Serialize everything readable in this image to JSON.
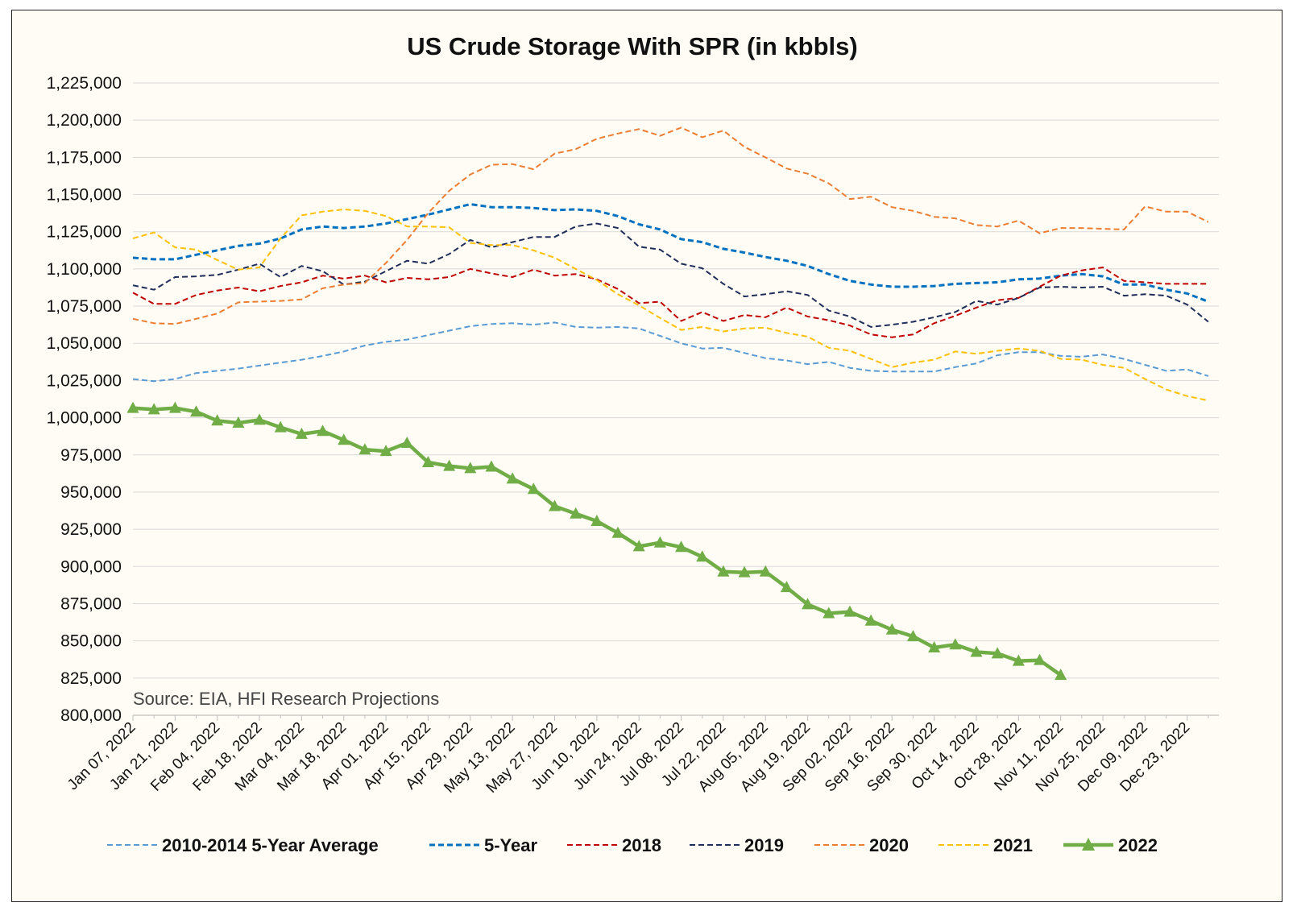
{
  "chart_data": {
    "type": "line",
    "title": "US Crude Storage With SPR (in kbbls)",
    "xlabel": "",
    "ylabel": "",
    "ylim": [
      800000,
      1225000
    ],
    "yticks": [
      800000,
      825000,
      850000,
      875000,
      900000,
      925000,
      950000,
      975000,
      1000000,
      1025000,
      1050000,
      1075000,
      1100000,
      1125000,
      1150000,
      1175000,
      1200000,
      1225000
    ],
    "ytick_labels": [
      "800,000",
      "825,000",
      "850,000",
      "875,000",
      "900,000",
      "925,000",
      "950,000",
      "975,000",
      "1,000,000",
      "1,025,000",
      "1,050,000",
      "1,075,000",
      "1,100,000",
      "1,125,000",
      "1,150,000",
      "1,175,000",
      "1,200,000",
      "1,225,000"
    ],
    "x_tick_labels": [
      "Jan 07, 2022",
      "Jan 21, 2022",
      "Feb 04, 2022",
      "Feb 18, 2022",
      "Mar 04, 2022",
      "Mar 18, 2022",
      "Apr 01, 2022",
      "Apr 15, 2022",
      "Apr 29, 2022",
      "May 13, 2022",
      "May 27, 2022",
      "Jun 10, 2022",
      "Jun 24, 2022",
      "Jul 08, 2022",
      "Jul 22, 2022",
      "Aug 05, 2022",
      "Aug 19, 2022",
      "Sep 02, 2022",
      "Sep 16, 2022",
      "Sep 30, 2022",
      "Oct 14, 2022",
      "Oct 28, 2022",
      "Nov 11, 2022",
      "Nov 25, 2022",
      "Dec 09, 2022",
      "Dec 23, 2022"
    ],
    "x_weeks_total": 52,
    "grid": true,
    "legend_position": "bottom",
    "annotation": "Source: EIA, HFI Research Projections",
    "series": [
      {
        "name": "2010-2014 5-Year Average",
        "color": "#5b9bd5",
        "style": "dashed",
        "values": [
          1026000,
          1024500,
          1026000,
          1030000,
          1031500,
          1033000,
          1035000,
          1037000,
          1039000,
          1041500,
          1044500,
          1048500,
          1051000,
          1052500,
          1055500,
          1058500,
          1061500,
          1063000,
          1063500,
          1062500,
          1064000,
          1061000,
          1060500,
          1061000,
          1060000,
          1055000,
          1050000,
          1046500,
          1047000,
          1043500,
          1040000,
          1038500,
          1036000,
          1037500,
          1033500,
          1031500,
          1031000,
          1031000,
          1031000,
          1034000,
          1036500,
          1042000,
          1044000,
          1044000,
          1041500,
          1041000,
          1042500,
          1039500,
          1035500,
          1031500,
          1032500,
          1028000
        ]
      },
      {
        "name": "5-Year",
        "color": "#0070c0",
        "style": "dashed",
        "values": [
          1107500,
          1106500,
          1106500,
          1109500,
          1112500,
          1115500,
          1117000,
          1120500,
          1126500,
          1128500,
          1127500,
          1128500,
          1130500,
          1133500,
          1136500,
          1140000,
          1143500,
          1141500,
          1141500,
          1141000,
          1139500,
          1140000,
          1139000,
          1135500,
          1130000,
          1126500,
          1120000,
          1118000,
          1113500,
          1111000,
          1108000,
          1105500,
          1102000,
          1096500,
          1092000,
          1089500,
          1088000,
          1088000,
          1088500,
          1090000,
          1090500,
          1091000,
          1093000,
          1093500,
          1095500,
          1096500,
          1095000,
          1089500,
          1089500,
          1086000,
          1083500,
          1078000
        ]
      },
      {
        "name": "2018",
        "color": "#c00000",
        "style": "dashed",
        "values": [
          1084000,
          1076500,
          1076500,
          1082500,
          1085500,
          1087500,
          1085000,
          1088500,
          1091000,
          1095500,
          1093500,
          1095500,
          1091000,
          1094000,
          1093000,
          1094500,
          1100000,
          1097000,
          1094500,
          1099500,
          1095500,
          1096500,
          1093000,
          1086500,
          1077000,
          1078000,
          1065000,
          1071000,
          1065000,
          1069000,
          1067500,
          1074000,
          1068000,
          1065500,
          1062000,
          1056000,
          1054000,
          1056000,
          1063500,
          1068500,
          1074000,
          1079000,
          1080500,
          1088000,
          1095500,
          1099000,
          1101000,
          1092000,
          1091000,
          1090000,
          1090000,
          1090000
        ]
      },
      {
        "name": "2019",
        "color": "#1f2d5a",
        "style": "dashed",
        "values": [
          1089000,
          1086000,
          1094500,
          1095000,
          1096000,
          1099500,
          1103500,
          1094500,
          1102000,
          1098500,
          1089500,
          1091500,
          1098500,
          1105500,
          1103500,
          1110000,
          1119500,
          1114500,
          1118000,
          1121500,
          1121500,
          1128500,
          1130500,
          1127500,
          1115000,
          1113000,
          1103500,
          1100500,
          1090000,
          1081500,
          1083000,
          1085000,
          1082500,
          1072000,
          1068000,
          1061000,
          1062500,
          1064500,
          1067500,
          1071000,
          1078500,
          1076000,
          1080500,
          1087500,
          1088000,
          1087500,
          1088000,
          1082000,
          1083000,
          1082000,
          1076000,
          1064500
        ]
      },
      {
        "name": "2020",
        "color": "#ed7d31",
        "style": "dashed",
        "values": [
          1066500,
          1063500,
          1063000,
          1066500,
          1070000,
          1077500,
          1078000,
          1078500,
          1079500,
          1087000,
          1089500,
          1090500,
          1104000,
          1119500,
          1137500,
          1152500,
          1163500,
          1170000,
          1170500,
          1167000,
          1177500,
          1180500,
          1187500,
          1191000,
          1194000,
          1189500,
          1195000,
          1188500,
          1193000,
          1182000,
          1175000,
          1167500,
          1164000,
          1157500,
          1147000,
          1148500,
          1141500,
          1139000,
          1135000,
          1134000,
          1129500,
          1128500,
          1132500,
          1124000,
          1127500,
          1127500,
          1127000,
          1126500,
          1142000,
          1138500,
          1138500,
          1131500
        ]
      },
      {
        "name": "2021",
        "color": "#ffc000",
        "style": "dashed",
        "values": [
          1120500,
          1124500,
          1114500,
          1113000,
          1106000,
          1099500,
          1101000,
          1120500,
          1136000,
          1138500,
          1140000,
          1139000,
          1135500,
          1128500,
          1128500,
          1128000,
          1117500,
          1116000,
          1116000,
          1112500,
          1107500,
          1100000,
          1092500,
          1083000,
          1075500,
          1067000,
          1059000,
          1061000,
          1058000,
          1060000,
          1060500,
          1057000,
          1054500,
          1047000,
          1045000,
          1039500,
          1034000,
          1037000,
          1039000,
          1044500,
          1043000,
          1045000,
          1046500,
          1045000,
          1039500,
          1039000,
          1035500,
          1033500,
          1026000,
          1019000,
          1014500,
          1011500
        ]
      },
      {
        "name": "2022",
        "color": "#70ad47",
        "style": "solid-triangle",
        "values": [
          1006500,
          1005500,
          1006500,
          1004000,
          998000,
          996500,
          998500,
          993500,
          989000,
          991000,
          985000,
          978500,
          977500,
          983000,
          970000,
          967500,
          966000,
          967000,
          959000,
          952000,
          940500,
          935500,
          930500,
          922500,
          913500,
          916000,
          913000,
          906500,
          896500,
          896000,
          896500,
          886000,
          874500,
          868500,
          869500,
          863500,
          857500,
          853000,
          845500,
          847500,
          842500,
          841500,
          836500,
          837000,
          827000
        ]
      }
    ]
  }
}
